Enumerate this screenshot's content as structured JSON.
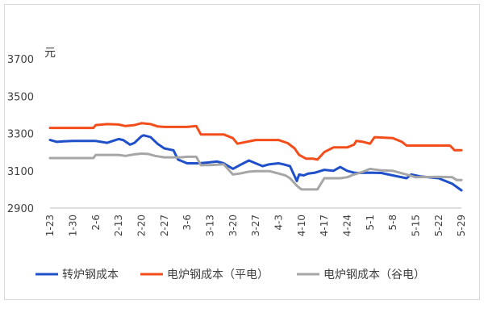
{
  "chart_data": {
    "type": "line",
    "title": "",
    "ylabel": "元",
    "xlabel": "",
    "ylim": [
      2900,
      3700
    ],
    "yticks": [
      2900,
      3100,
      3300,
      3500,
      3700
    ],
    "grid": false,
    "legend_position": "bottom",
    "xticklabels": [
      "1-23",
      "1-30",
      "2-6",
      "2-13",
      "2-20",
      "2-27",
      "3-6",
      "3-13",
      "3-20",
      "3-27",
      "4-3",
      "4-10",
      "4-17",
      "4-24",
      "5-1",
      "5-8",
      "5-15",
      "5-22",
      "5-29"
    ],
    "series": [
      {
        "name": "转炉钢成本",
        "color": "#1f4fc9",
        "x": [
          0,
          0.3,
          0.6,
          1,
          2,
          2.5,
          3,
          3.2,
          3.5,
          3.7,
          4,
          4.1,
          4.4,
          4.7,
          5,
          5.4,
          5.6,
          6,
          6.5,
          7,
          7.3,
          7.6,
          8,
          8.3,
          8.7,
          9,
          9.3,
          9.6,
          10,
          10.2,
          10.5,
          10.8,
          10.9,
          11.1,
          11.3,
          11.6,
          12,
          12.4,
          12.7,
          13,
          13.3,
          13.5,
          14,
          14.5,
          15,
          15.6,
          15.8,
          16.2,
          17,
          17.6,
          18
        ],
        "values": [
          3265,
          3255,
          3258,
          3260,
          3260,
          3250,
          3270,
          3265,
          3240,
          3250,
          3285,
          3290,
          3280,
          3245,
          3220,
          3210,
          3160,
          3140,
          3140,
          3145,
          3150,
          3140,
          3110,
          3130,
          3155,
          3140,
          3125,
          3135,
          3140,
          3135,
          3125,
          3045,
          3080,
          3075,
          3085,
          3090,
          3105,
          3100,
          3120,
          3100,
          3090,
          3088,
          3090,
          3088,
          3075,
          3060,
          3080,
          3070,
          3060,
          3030,
          2995
        ]
      },
      {
        "name": "电炉钢成本（平电）",
        "color": "#f24d1b",
        "x": [
          0,
          1,
          1.9,
          2,
          2.5,
          3,
          3.3,
          3.7,
          4,
          4.4,
          4.7,
          5,
          5.4,
          6,
          6.4,
          6.6,
          7,
          7.6,
          8,
          8.2,
          8.6,
          9,
          9.4,
          10,
          10.4,
          10.7,
          10.9,
          11.2,
          11.5,
          11.7,
          12,
          12.4,
          12.7,
          13,
          13.3,
          13.4,
          13.7,
          14,
          14.2,
          15,
          15.4,
          15.6,
          16,
          17,
          17.5,
          17.7,
          18
        ],
        "values": [
          3330,
          3330,
          3330,
          3345,
          3350,
          3348,
          3340,
          3345,
          3355,
          3350,
          3338,
          3335,
          3335,
          3335,
          3340,
          3295,
          3295,
          3295,
          3275,
          3245,
          3255,
          3265,
          3265,
          3265,
          3248,
          3220,
          3185,
          3165,
          3165,
          3160,
          3200,
          3225,
          3225,
          3225,
          3240,
          3260,
          3255,
          3245,
          3280,
          3275,
          3255,
          3235,
          3235,
          3235,
          3235,
          3210,
          3210
        ]
      },
      {
        "name": "电炉钢成本（谷电）",
        "color": "#a6a6a6",
        "x": [
          0,
          1,
          1.9,
          2,
          3,
          3.3,
          3.7,
          4,
          4.3,
          4.6,
          5,
          5.7,
          6,
          6.4,
          6.6,
          7,
          7.6,
          8,
          8.3,
          8.7,
          9,
          9.6,
          10,
          10.3,
          10.5,
          10.8,
          11,
          11.4,
          11.7,
          12,
          12.4,
          12.7,
          13,
          13.3,
          13.7,
          14,
          14.5,
          15,
          15.6,
          16,
          17,
          17.6,
          17.8,
          18
        ],
        "values": [
          3168,
          3168,
          3168,
          3185,
          3185,
          3180,
          3188,
          3192,
          3190,
          3180,
          3172,
          3172,
          3175,
          3175,
          3130,
          3130,
          3135,
          3080,
          3085,
          3095,
          3098,
          3098,
          3085,
          3075,
          3060,
          3020,
          3000,
          3000,
          3000,
          3060,
          3060,
          3060,
          3065,
          3080,
          3095,
          3110,
          3102,
          3100,
          3080,
          3065,
          3068,
          3065,
          3050,
          3050
        ]
      }
    ]
  }
}
